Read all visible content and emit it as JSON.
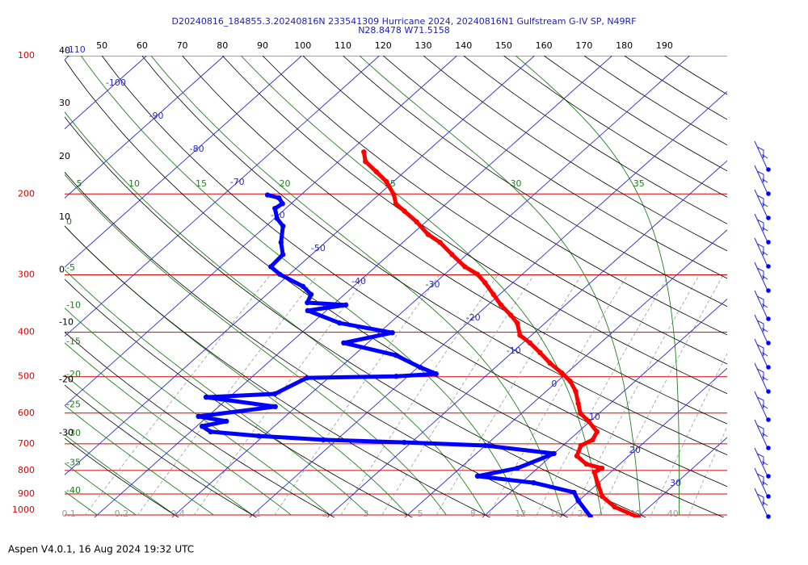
{
  "header": {
    "title": "D20240816_184855.3.20240816N 233541309 Hurricane 2024, 20240816N1 Gulfstream G-IV SP, N49RF",
    "subtitle": "N28.8478 W71.5158"
  },
  "chart_data": {
    "type": "skewt",
    "ylim": [
      1000,
      100
    ],
    "log_scale": true,
    "yticks": [
      100,
      200,
      300,
      400,
      500,
      600,
      700,
      800,
      900,
      1000
    ],
    "xlim": [
      -44.2,
      41.2
    ],
    "isotherms": [
      -110,
      -100,
      -90,
      -80,
      -70,
      -60,
      -50,
      -40,
      -30,
      -20,
      -10,
      0,
      10,
      20,
      30
    ],
    "dry_adiabats": [
      -30,
      -20,
      -10,
      0,
      10,
      20,
      30,
      40,
      50,
      60,
      70,
      80,
      90,
      100,
      110,
      120,
      130,
      140,
      150,
      160,
      170,
      180,
      190
    ],
    "moist_adiabats": [
      -40,
      -35,
      -30,
      -25,
      -20,
      -15,
      -10,
      -5,
      0,
      5,
      10,
      15,
      20,
      25,
      30,
      35
    ],
    "mixing_ratios": [
      0.1,
      0.2,
      0.4,
      1,
      2,
      3,
      5,
      8,
      12,
      16,
      20,
      30,
      40
    ],
    "series": [
      {
        "color": "#ff0000",
        "pressure": [
          162,
          170,
          179,
          188,
          201,
          210,
          218,
          230,
          245,
          255,
          271,
          288,
          299,
          312,
          331,
          349,
          367,
          382,
          406,
          422,
          443,
          467,
          491,
          511,
          538,
          572,
          601,
          625,
          659,
          686,
          706,
          744,
          775,
          791,
          807,
          857,
          911,
          960,
          1012
        ],
        "values": [
          -58.1,
          -56.5,
          -53.6,
          -50.9,
          -48.0,
          -46.5,
          -44.3,
          -41.2,
          -37.9,
          -35.2,
          -31.9,
          -28.5,
          -25.8,
          -23.6,
          -20.8,
          -18.3,
          -15.6,
          -13.6,
          -11.5,
          -9.1,
          -6.4,
          -3.6,
          -0.6,
          1.6,
          3.8,
          5.9,
          7.6,
          9.8,
          12.4,
          13.0,
          12.3,
          13.3,
          15.7,
          18.3,
          17.9,
          20.1,
          22.4,
          25.5,
          30.1
        ]
      },
      {
        "color": "#0000ff",
        "pressure": [
          201,
          204,
          210,
          215,
          226,
          235,
          255,
          271,
          288,
          299,
          318,
          331,
          345,
          349,
          359,
          382,
          401,
          422,
          449,
          477,
          493,
          499,
          503,
          545,
          554,
          581,
          610,
          625,
          641,
          659,
          673,
          686,
          695,
          706,
          735,
          791,
          823,
          851,
          893,
          930,
          1008
        ],
        "values": [
          -64.3,
          -62.4,
          -61.1,
          -61.4,
          -59.7,
          -57.8,
          -55.7,
          -53.7,
          -53.5,
          -51.3,
          -46.5,
          -44.3,
          -43.6,
          -38.3,
          -42.4,
          -36.5,
          -28.3,
          -33.1,
          -24.6,
          -19.7,
          -16.7,
          -21.5,
          -32.8,
          -34.6,
          -43.0,
          -32.7,
          -41.2,
          -36.9,
          -39.3,
          -37.4,
          -30.6,
          -21.7,
          -10.9,
          0,
          10.0,
          7.4,
          3.4,
          11.6,
          18.2,
          19.9,
          23.8
        ]
      }
    ]
  },
  "footer": "Aspen V4.0.1, 16 Aug 2024  19:32 UTC"
}
